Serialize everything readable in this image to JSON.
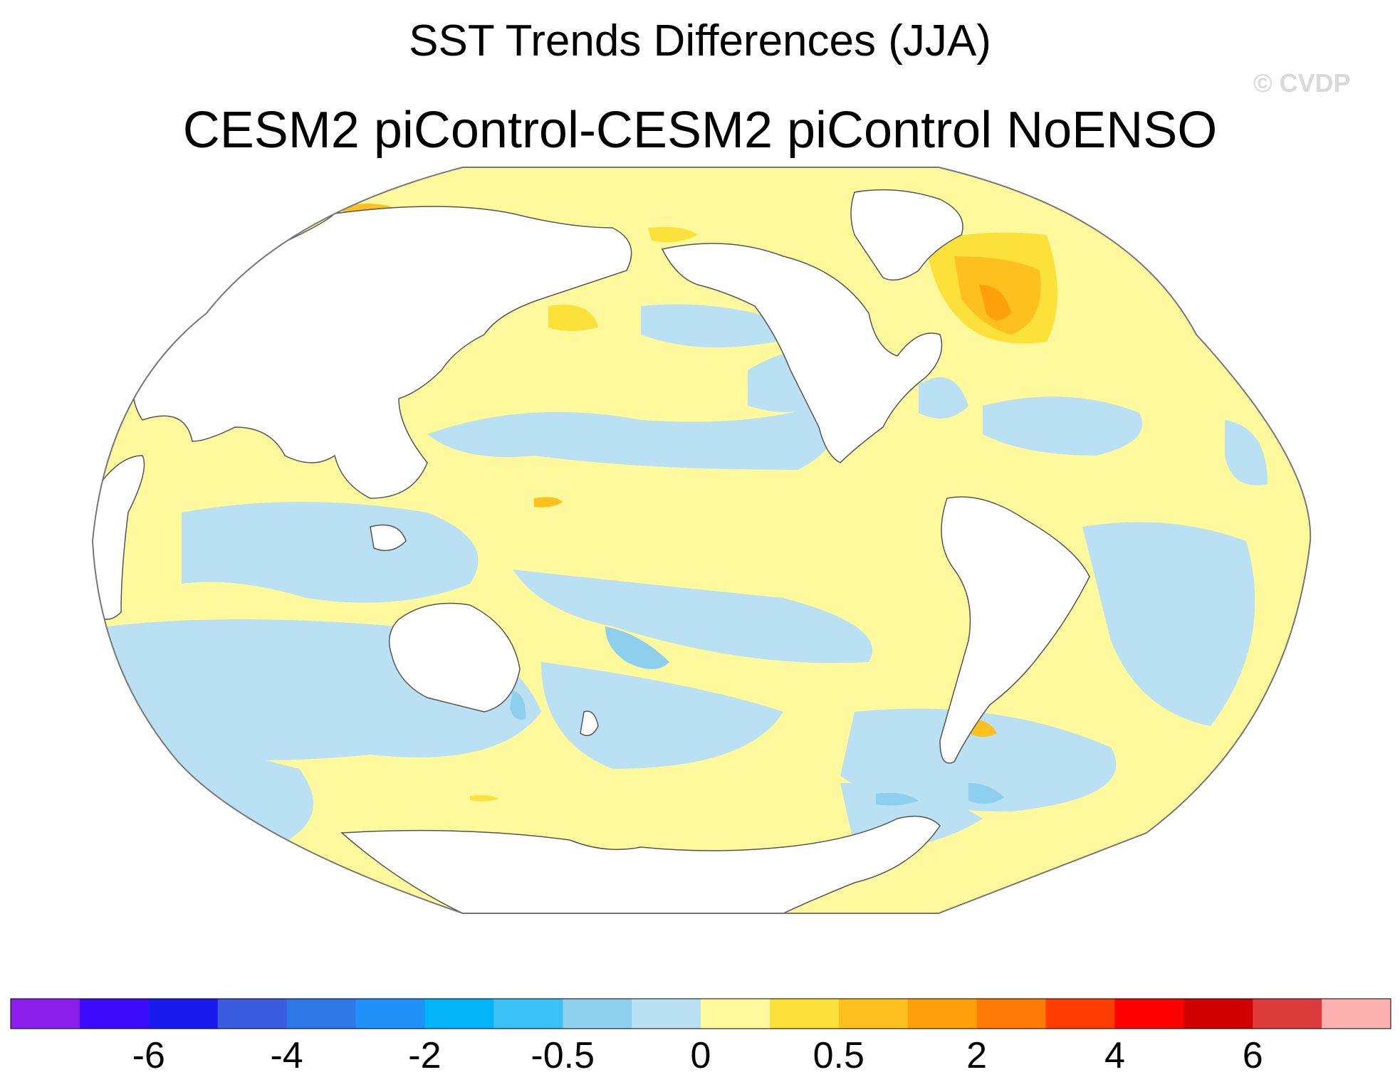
{
  "title": "SST Trends Differences (JJA)",
  "subtitle": "CESM2 piControl-CESM2 piControl NoENSO",
  "watermark": "© CVDP",
  "colorbar": {
    "colors": [
      "#8c1eeb",
      "#3b0cfb",
      "#1a1aee",
      "#3b5ce0",
      "#2e78e8",
      "#1e90f8",
      "#04b4f9",
      "#3cc1f6",
      "#8ecfee",
      "#b9e0f3",
      "#fff99e",
      "#fde13b",
      "#fec01e",
      "#fea009",
      "#ff7b08",
      "#ff3d05",
      "#fe0000",
      "#cf0000",
      "#dc3c3c",
      "#feb1b1"
    ],
    "tick_labels": [
      "-6",
      "-4",
      "-2",
      "-0.5",
      "0",
      "0.5",
      "2",
      "4",
      "6"
    ],
    "tick_boundaries": [
      2,
      4,
      6,
      8,
      10,
      12,
      14,
      16,
      18
    ]
  },
  "map": {
    "projection": "Robinson",
    "background_class_color": "#fff99e",
    "land_color": "#ffffff",
    "coastline_color": "#555555"
  }
}
